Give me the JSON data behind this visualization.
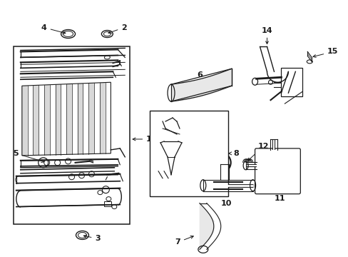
{
  "bg_color": "#ffffff",
  "line_color": "#1a1a1a",
  "fig_width": 4.89,
  "fig_height": 3.6,
  "dpi": 100,
  "label_fs": 8.0,
  "arrow_lw": 0.7,
  "part_lw": 0.8
}
